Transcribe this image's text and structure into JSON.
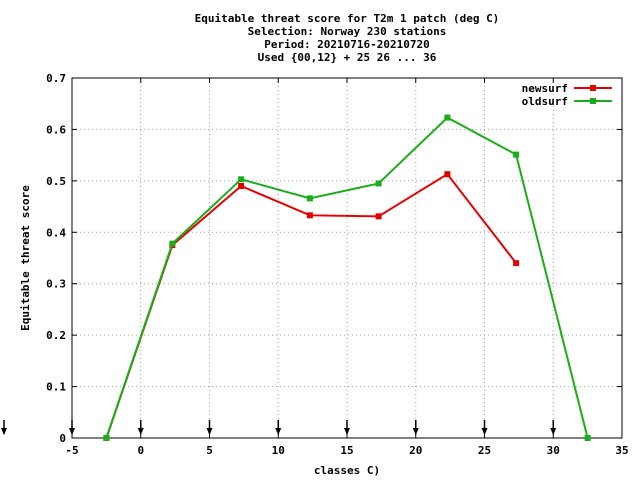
{
  "chart_data": {
    "type": "line",
    "title_lines": [
      "Equitable threat score  for T2m 1 patch (deg C)",
      "Selection: Norway    230 stations",
      "Period: 20210716-20210720",
      "Used {00,12} + 25 26 ... 36"
    ],
    "xlabel": "classes C)",
    "ylabel": "Equitable threat score",
    "xlim": [
      -5,
      35
    ],
    "ylim": [
      0,
      0.7
    ],
    "xticks": [
      -5,
      0,
      5,
      10,
      15,
      20,
      25,
      30,
      35
    ],
    "yticks": [
      0,
      0.1,
      0.2,
      0.3,
      0.4,
      0.5,
      0.6,
      0.7
    ],
    "grid": true,
    "legend_position": "top-right",
    "arrow_markers_x": [
      -5,
      0,
      5,
      10,
      15,
      20,
      25,
      30
    ],
    "series": [
      {
        "name": "newsurf",
        "color": "#e60000",
        "x": [
          -2.5,
          2.3,
          7.3,
          12.3,
          17.3,
          22.3,
          27.3
        ],
        "y": [
          0.0,
          0.375,
          0.49,
          0.433,
          0.431,
          0.513,
          0.34
        ]
      },
      {
        "name": "oldsurf",
        "color": "#1aad1a",
        "x": [
          -2.5,
          2.3,
          7.3,
          12.3,
          17.3,
          22.3,
          27.3,
          32.5
        ],
        "y": [
          0.0,
          0.378,
          0.503,
          0.466,
          0.495,
          0.623,
          0.551,
          0.0
        ]
      }
    ]
  }
}
